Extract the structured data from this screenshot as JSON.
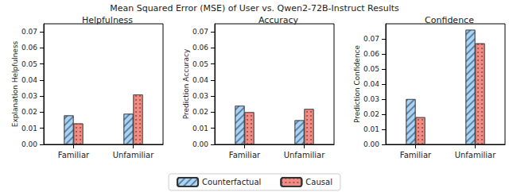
{
  "title": "Mean Squared Error (MSE) of User vs. Qwen2-72B-Instruct Results",
  "legend": "bottom",
  "chart_data": [
    {
      "type": "bar",
      "title": "Helpfulness",
      "y_label": "Explanation Helpfulness",
      "categories": [
        "Familiar",
        "Unfamiliar"
      ],
      "series": [
        {
          "name": "Counterfactual",
          "color": "#a9d4f5",
          "values": [
            0.018,
            0.019
          ]
        },
        {
          "name": "Causal",
          "color": "#f28b82",
          "values": [
            0.013,
            0.031
          ]
        }
      ],
      "ylim": [
        0,
        0.075
      ],
      "yticks": [
        {
          "value": 0,
          "label": "0.00"
        },
        0.01,
        0.02,
        0.03,
        0.04,
        0.05,
        0.06,
        0.07
      ],
      "grid": false
    },
    {
      "type": "bar",
      "title": "Accuracy",
      "y_label": "Prediction Accuracy",
      "categories": [
        "Familiar",
        "Unfamiliar"
      ],
      "series": [
        {
          "name": "Counterfactual",
          "color": "#a9d4f5",
          "values": [
            0.024,
            0.015
          ]
        },
        {
          "name": "Causal",
          "color": "#f28b82",
          "values": [
            0.02,
            0.022
          ]
        }
      ],
      "ylim": [
        0,
        0.075
      ],
      "yticks": [
        {
          "value": 0,
          "label": "0.00"
        },
        0.01,
        0.02,
        0.03,
        0.04,
        0.05,
        0.06,
        0.07
      ],
      "grid": false
    },
    {
      "type": "bar",
      "title": "Confidence",
      "y_label": "Prediction Confidence",
      "categories": [
        "Familiar",
        "Unfamiliar"
      ],
      "series": [
        {
          "name": "Counterfactual",
          "color": "#a9d4f5",
          "values": [
            0.03,
            0.076
          ]
        },
        {
          "name": "Causal",
          "color": "#f28b82",
          "values": [
            0.018,
            0.067
          ]
        }
      ],
      "ylim": [
        0,
        0.08
      ],
      "yticks": [
        {
          "value": 0,
          "label": "0.00"
        },
        0.01,
        0.02,
        0.03,
        0.04,
        0.05,
        0.06,
        0.07
      ],
      "grid": false
    }
  ]
}
